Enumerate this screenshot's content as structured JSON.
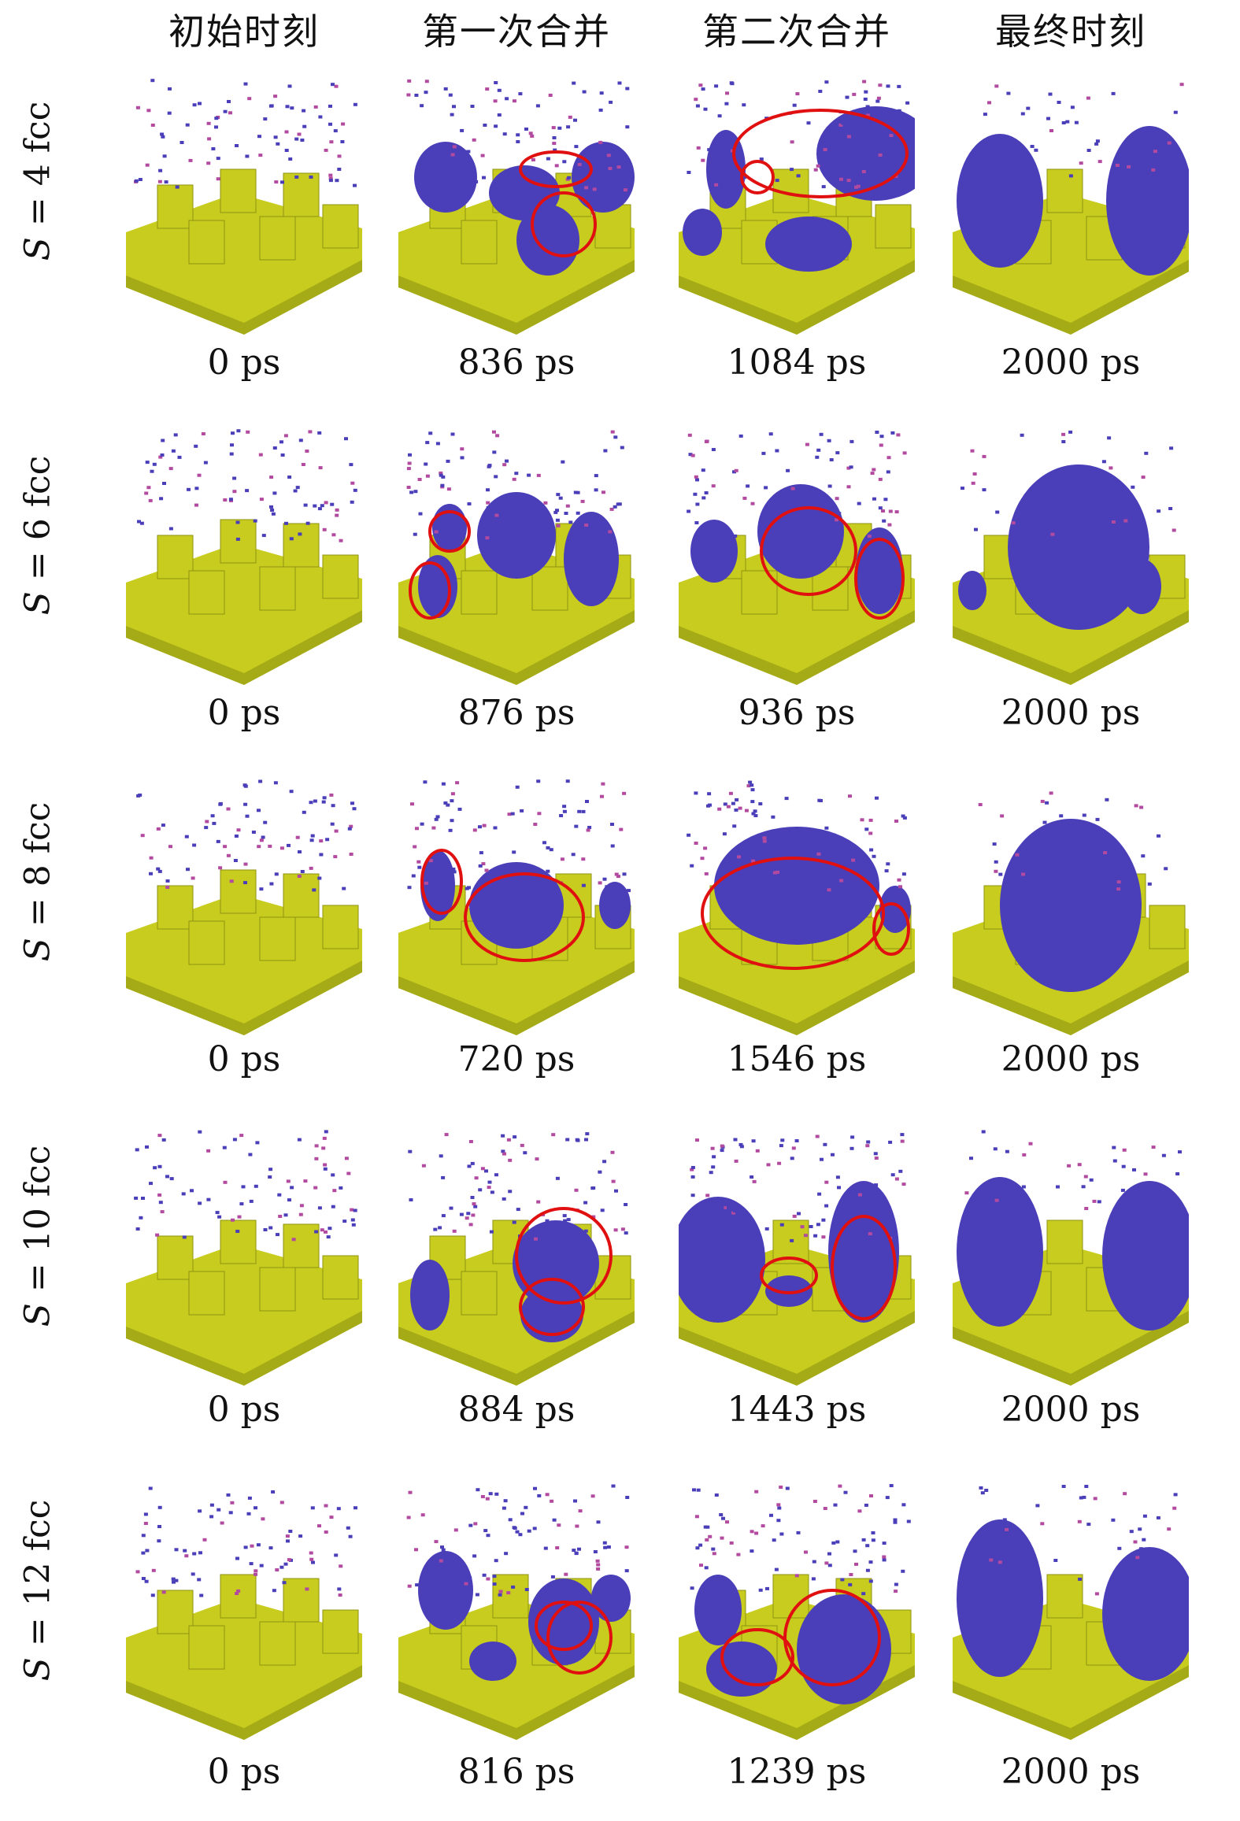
{
  "columns": [
    "初始时刻",
    "第一次合并",
    "第二次合并",
    "最终时刻"
  ],
  "rows": [
    {
      "label_var": "S",
      "label_rest": " = 4 fcc",
      "times": [
        "0 ps",
        "836 ps",
        "1084 ps",
        "2000 ps"
      ]
    },
    {
      "label_var": "S",
      "label_rest": " = 6 fcc",
      "times": [
        "0 ps",
        "876 ps",
        "936 ps",
        "2000 ps"
      ]
    },
    {
      "label_var": "S",
      "label_rest": " = 8 fcc",
      "times": [
        "0 ps",
        "720 ps",
        "1546 ps",
        "2000 ps"
      ]
    },
    {
      "label_var": "S",
      "label_rest": " = 10 fcc",
      "times": [
        "0 ps",
        "884 ps",
        "1443 ps",
        "2000 ps"
      ]
    },
    {
      "label_var": "S",
      "label_rest": " = 12 fcc",
      "times": [
        "0 ps",
        "816 ps",
        "1239 ps",
        "2000 ps"
      ]
    }
  ],
  "colors": {
    "substrate": "#c8cc1e",
    "substrate_dark": "#8e9212",
    "cluster": "#4a3fb8",
    "highlight": "#e01010"
  }
}
